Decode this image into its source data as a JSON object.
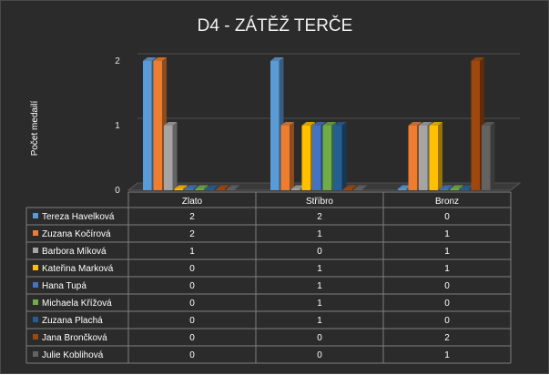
{
  "chart_data": {
    "type": "bar",
    "title": "D4 - ZÁTĚŽ TERČE",
    "ylabel": "Počet medailí",
    "ylim": [
      0,
      2
    ],
    "yticks": [
      0,
      1,
      2
    ],
    "grid": true,
    "legend": "data-table",
    "categories": [
      "Zlato",
      "Stříbro",
      "Bronz"
    ],
    "series": [
      {
        "name": "Tereza Havelková",
        "color": "#5b9bd5",
        "values": [
          2,
          2,
          0
        ]
      },
      {
        "name": "Zuzana Kočírová",
        "color": "#ed7d31",
        "values": [
          2,
          1,
          1
        ]
      },
      {
        "name": "Barbora Míková",
        "color": "#a5a5a5",
        "values": [
          1,
          0,
          1
        ]
      },
      {
        "name": "Kateřina Marková",
        "color": "#ffc000",
        "values": [
          0,
          1,
          1
        ]
      },
      {
        "name": "Hana Tupá",
        "color": "#4472c4",
        "values": [
          0,
          1,
          0
        ]
      },
      {
        "name": "Michaela Křížová",
        "color": "#70ad47",
        "values": [
          0,
          1,
          0
        ]
      },
      {
        "name": "Zuzana Plachá",
        "color": "#255e91",
        "values": [
          0,
          1,
          0
        ]
      },
      {
        "name": "Jana Brončková",
        "color": "#9e480e",
        "values": [
          0,
          0,
          2
        ]
      },
      {
        "name": "Julie Koblihová",
        "color": "#636363",
        "values": [
          0,
          0,
          1
        ]
      }
    ]
  }
}
